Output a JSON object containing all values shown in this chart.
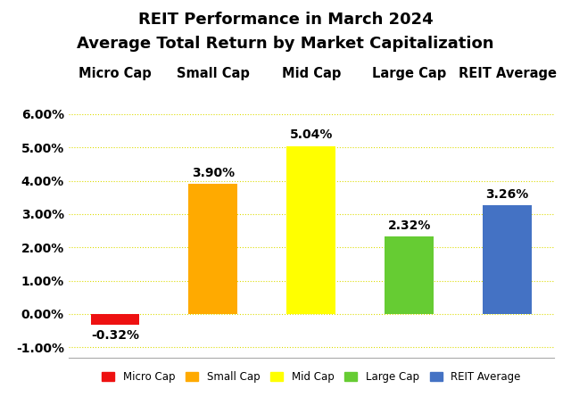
{
  "title_line1": "REIT Performance in March 2024",
  "title_line2": "Average Total Return by Market Capitalization",
  "categories": [
    "Micro Cap",
    "Small Cap",
    "Mid Cap",
    "Large Cap",
    "REIT Average"
  ],
  "values": [
    -0.0032,
    0.039,
    0.0504,
    0.0232,
    0.0326
  ],
  "bar_colors": [
    "#ee1111",
    "#ffaa00",
    "#ffff00",
    "#66cc33",
    "#4472c4"
  ],
  "value_labels": [
    "-0.32%",
    "3.90%",
    "5.04%",
    "2.32%",
    "3.26%"
  ],
  "ylim": [
    -0.013,
    0.068
  ],
  "yticks": [
    -0.01,
    0.0,
    0.01,
    0.02,
    0.03,
    0.04,
    0.05,
    0.06
  ],
  "ytick_labels": [
    "-1.00%",
    "0.00%",
    "1.00%",
    "2.00%",
    "3.00%",
    "4.00%",
    "5.00%",
    "6.00%"
  ],
  "background_color": "#ffffff",
  "grid_color": "#dddd00",
  "title_fontsize": 13,
  "label_fontsize": 10,
  "tick_fontsize": 10,
  "cat_label_fontsize": 10.5
}
